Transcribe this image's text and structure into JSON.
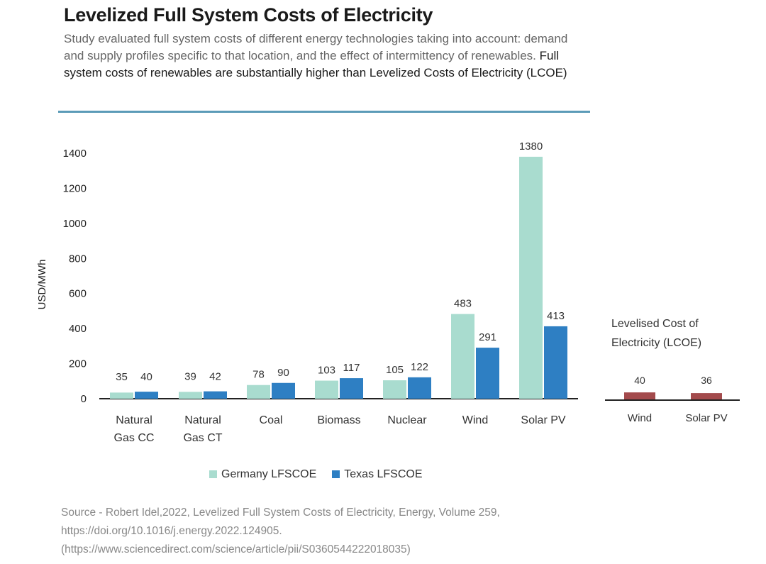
{
  "header": {
    "title": "Levelized Full System Costs of Electricity",
    "subtitle_plain": "Study evaluated full system costs of different energy technologies taking into account: demand and supply profiles specific to that location, and the effect of intermittency of renewables.",
    "subtitle_bold": "Full system costs of renewables are substantially higher than Levelized Costs of Electricity (LCOE)"
  },
  "chart_data": [
    {
      "type": "bar",
      "title": "",
      "ylabel": "USD/MWh",
      "xlabel": "",
      "ylim": [
        0,
        1400
      ],
      "yticks": [
        "0",
        "200",
        "400",
        "600",
        "800",
        "1000",
        "1200",
        "1400"
      ],
      "categories": [
        [
          "Natural",
          "Gas CC"
        ],
        [
          "Natural",
          "Gas CT"
        ],
        [
          "Coal"
        ],
        [
          "Biomass"
        ],
        [
          "Nuclear"
        ],
        [
          "Wind"
        ],
        [
          "Solar PV"
        ]
      ],
      "series": [
        {
          "name": "Germany LFSCOE",
          "color": "#a9dccf",
          "values": [
            35,
            39,
            78,
            103,
            105,
            483,
            1380
          ]
        },
        {
          "name": "Texas LFSCOE",
          "color": "#2e7fc3",
          "values": [
            40,
            42,
            90,
            117,
            122,
            291,
            413
          ]
        }
      ],
      "legend_position": "bottom",
      "grid": false
    },
    {
      "type": "bar",
      "title": "Levelised Cost of Electricity (LCOE)",
      "title_lines": [
        "Levelised Cost of",
        "Electricity (LCOE)"
      ],
      "categories": [
        "Wind",
        "Solar PV"
      ],
      "series": [
        {
          "name": "LCOE",
          "color": "#a34a4c",
          "values": [
            40,
            36
          ]
        }
      ]
    }
  ],
  "source": {
    "line1": "Source - Robert Idel,2022, Levelized Full System Costs of Electricity, Energy, Volume 259,",
    "line2": "https://doi.org/10.1016/j.energy.2022.124905.",
    "line3": "(https://www.sciencedirect.com/science/article/pii/S0360544222018035)"
  }
}
